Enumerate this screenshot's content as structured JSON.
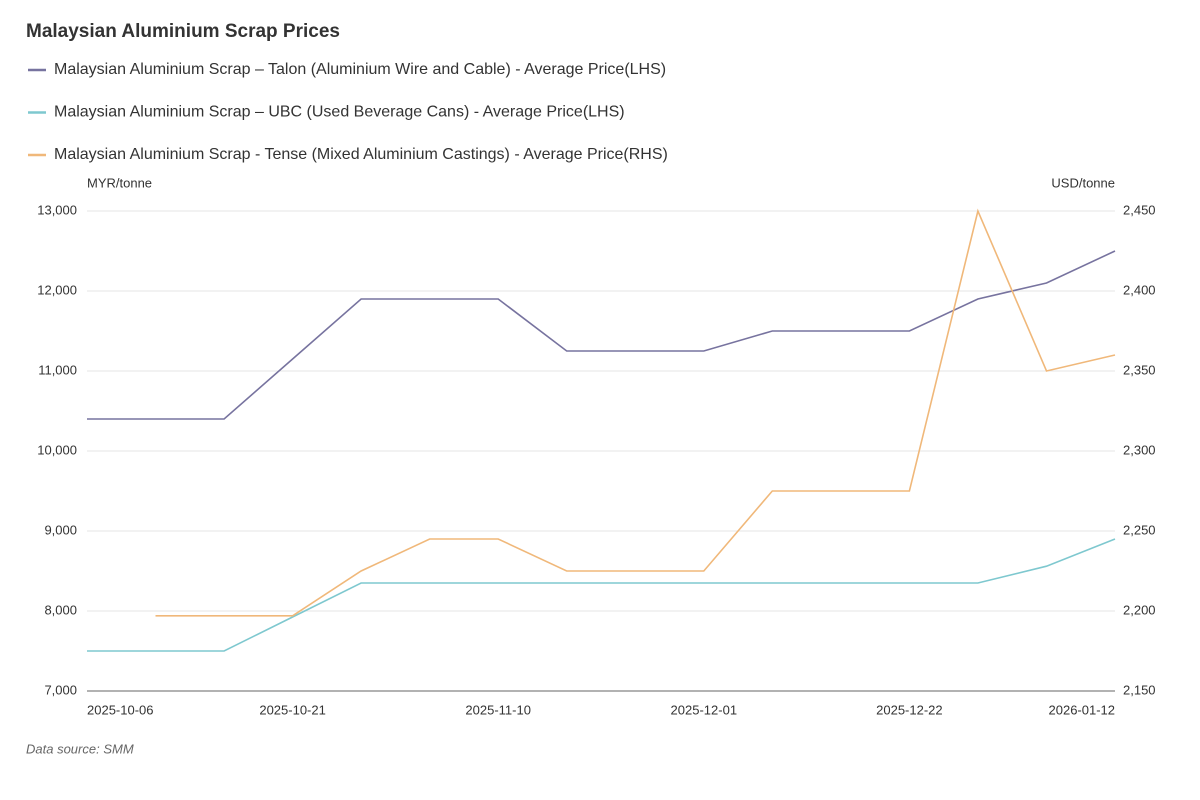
{
  "chart_data": {
    "type": "line",
    "title": "Malaysian Aluminium Scrap Prices",
    "y_label": "MYR/tonne",
    "y2_label": "USD/tonne",
    "source": "Data source:  SMM",
    "categories": [
      "2025-10-06",
      null,
      null,
      "2025-10-21",
      null,
      null,
      "2025-11-10",
      null,
      null,
      "2025-12-01",
      null,
      null,
      "2025-12-22",
      null,
      null,
      "2026-01-12"
    ],
    "series": [
      {
        "name": "Malaysian Aluminium Scrap – Talon (Aluminium Wire and Cable) - Average Price(LHS)",
        "color": "#77739f",
        "values": [
          10400,
          10400,
          10400,
          11150,
          11900,
          11900,
          11900,
          11250,
          11250,
          11250,
          11500,
          11500,
          11500,
          11900,
          12100,
          12500
        ]
      },
      {
        "name": "Malaysian Aluminium Scrap – UBC (Used Beverage Cans) - Average Price(LHS)",
        "color": "#7ec8cf",
        "values": [
          7500,
          7500,
          7500,
          7925,
          8350,
          8350,
          8350,
          8350,
          8350,
          8350,
          8350,
          8350,
          8350,
          8350,
          8560,
          8900
        ]
      },
      {
        "name": "Malaysian Aluminium Scrap - Tense (Mixed Aluminium Castings) - Average Price(RHS)",
        "color": "#f0b87a",
        "axis": "y2",
        "values": [
          null,
          2197,
          2197,
          2197,
          2225,
          2245,
          2245,
          2225,
          2225,
          2225,
          2275,
          2275,
          2275,
          2450,
          2350,
          2360
        ]
      }
    ],
    "ylim": [
      7000,
      13000
    ],
    "yticks": [
      {
        "value": 7000,
        "label": "7,000"
      },
      {
        "value": 8000,
        "label": "8,000"
      },
      {
        "value": 9000,
        "label": "9,000"
      },
      {
        "value": 10000,
        "label": "10,000"
      },
      {
        "value": 11000,
        "label": "11,000"
      },
      {
        "value": 12000,
        "label": "12,000"
      },
      {
        "value": 13000,
        "label": "13,000"
      }
    ],
    "y2lim": [
      2150,
      2450
    ],
    "y2ticks": [
      {
        "value": 2150,
        "label": "2,150"
      },
      {
        "value": 2200,
        "label": "2,200"
      },
      {
        "value": 2250,
        "label": "2,250"
      },
      {
        "value": 2300,
        "label": "2,300"
      },
      {
        "value": 2350,
        "label": "2,350"
      },
      {
        "value": 2400,
        "label": "2,400"
      },
      {
        "value": 2450,
        "label": "2,450"
      }
    ],
    "grid": true
  }
}
